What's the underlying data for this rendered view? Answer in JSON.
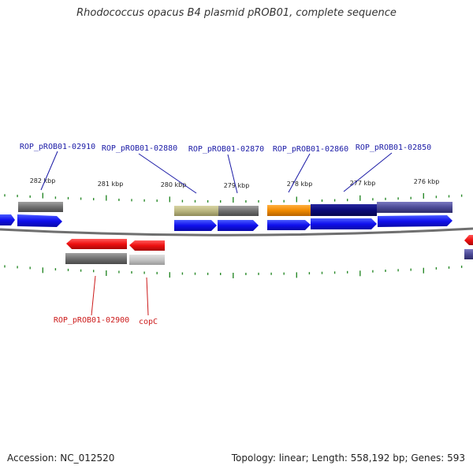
{
  "title": "Rhodococcus opacus B4 plasmid pROB01, complete sequence",
  "footer": {
    "accession": "Accession: NC_012520",
    "topology": "Topology: linear; Length: 558,192 bp; Genes: 593"
  },
  "scale_labels": [
    "282 kbp",
    "281 kbp",
    "280 kbp",
    "279 kbp",
    "278 kbp",
    "277 kbp",
    "276 kbp"
  ],
  "top_gene_labels": [
    "ROP_pROB01-02910",
    "ROP_pROB01-02880",
    "ROP_pROB01-02870",
    "ROP_pROB01-02860",
    "ROP_pROB01-02850"
  ],
  "bottom_gene_labels": [
    "ROP_pROB01-02900",
    "copC"
  ],
  "colors": {
    "forward_gene": "#1a1aee",
    "reverse_gene": "#ee1111",
    "backbone": "#777777",
    "tick": "#2a8a2a",
    "top_label": "#1a1aa6",
    "bottom_label": "#cc1a1a"
  }
}
